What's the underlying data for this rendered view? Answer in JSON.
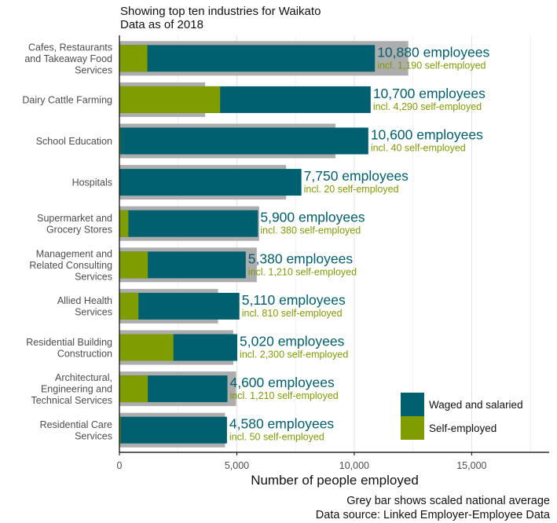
{
  "chart_data": {
    "type": "bar",
    "title": "Showing top ten industries for Waikato",
    "subtitle": "Data as of 2018",
    "xlabel": "Number of people employed",
    "ylabel": "",
    "xlim": [
      0,
      18300
    ],
    "xticks": [
      0,
      5000,
      10000,
      15000
    ],
    "xtick_labels": [
      "0",
      "5,000",
      "10,000",
      "15,000"
    ],
    "grid": true,
    "legend_position": "bottom-right",
    "colors": {
      "waged": "#00606f",
      "self": "#7f9c00",
      "national": "#adadad",
      "total_label": "#00606f",
      "self_label": "#7f9c00"
    },
    "series": [
      {
        "name": "Waged and salaried",
        "color": "#00606f"
      },
      {
        "name": "Self-employed",
        "color": "#7f9c00"
      }
    ],
    "rows": [
      {
        "lines": [
          "Cafes, Restaurants",
          "and Takeaway Food",
          "Services"
        ],
        "total": 10880,
        "self": 1190,
        "national": 12300,
        "total_label": "10,880 employees",
        "self_label": "incl. 1,190 self-employed"
      },
      {
        "lines": [
          "Dairy Cattle Farming"
        ],
        "total": 10700,
        "self": 4290,
        "national": 3650,
        "total_label": "10,700 employees",
        "self_label": "incl. 4,290 self-employed"
      },
      {
        "lines": [
          "School Education"
        ],
        "total": 10600,
        "self": 40,
        "national": 9200,
        "total_label": "10,600 employees",
        "self_label": "incl. 40 self-employed"
      },
      {
        "lines": [
          "Hospitals"
        ],
        "total": 7750,
        "self": 20,
        "national": 7100,
        "total_label": "7,750 employees",
        "self_label": "incl. 20 self-employed"
      },
      {
        "lines": [
          "Supermarket and",
          "Grocery Stores"
        ],
        "total": 5900,
        "self": 380,
        "national": 5950,
        "total_label": "5,900 employees",
        "self_label": "incl. 380 self-employed"
      },
      {
        "lines": [
          "Management and",
          "Related Consulting",
          "Services"
        ],
        "total": 5380,
        "self": 1210,
        "national": 5850,
        "total_label": "5,380 employees",
        "self_label": "incl. 1,210 self-employed"
      },
      {
        "lines": [
          "Allied Health",
          "Services"
        ],
        "total": 5110,
        "self": 810,
        "national": 4200,
        "total_label": "5,110 employees",
        "self_label": "incl. 810 self-employed"
      },
      {
        "lines": [
          "Residential Building",
          "Construction"
        ],
        "total": 5020,
        "self": 2300,
        "national": 4850,
        "total_label": "5,020 employees",
        "self_label": "incl. 2,300 self-employed"
      },
      {
        "lines": [
          "Architectural,",
          "Engineering and",
          "Technical Services"
        ],
        "total": 4600,
        "self": 1210,
        "national": 4970,
        "total_label": "4,600 employees",
        "self_label": "incl. 1,210 self-employed"
      },
      {
        "lines": [
          "Residential Care",
          "Services"
        ],
        "total": 4580,
        "self": 50,
        "national": 4500,
        "total_label": "4,580 employees",
        "self_label": "incl. 50 self-employed"
      }
    ],
    "footnotes": [
      "Grey bar shows scaled national average",
      "Data source: Linked Employer-Employee Data"
    ]
  }
}
